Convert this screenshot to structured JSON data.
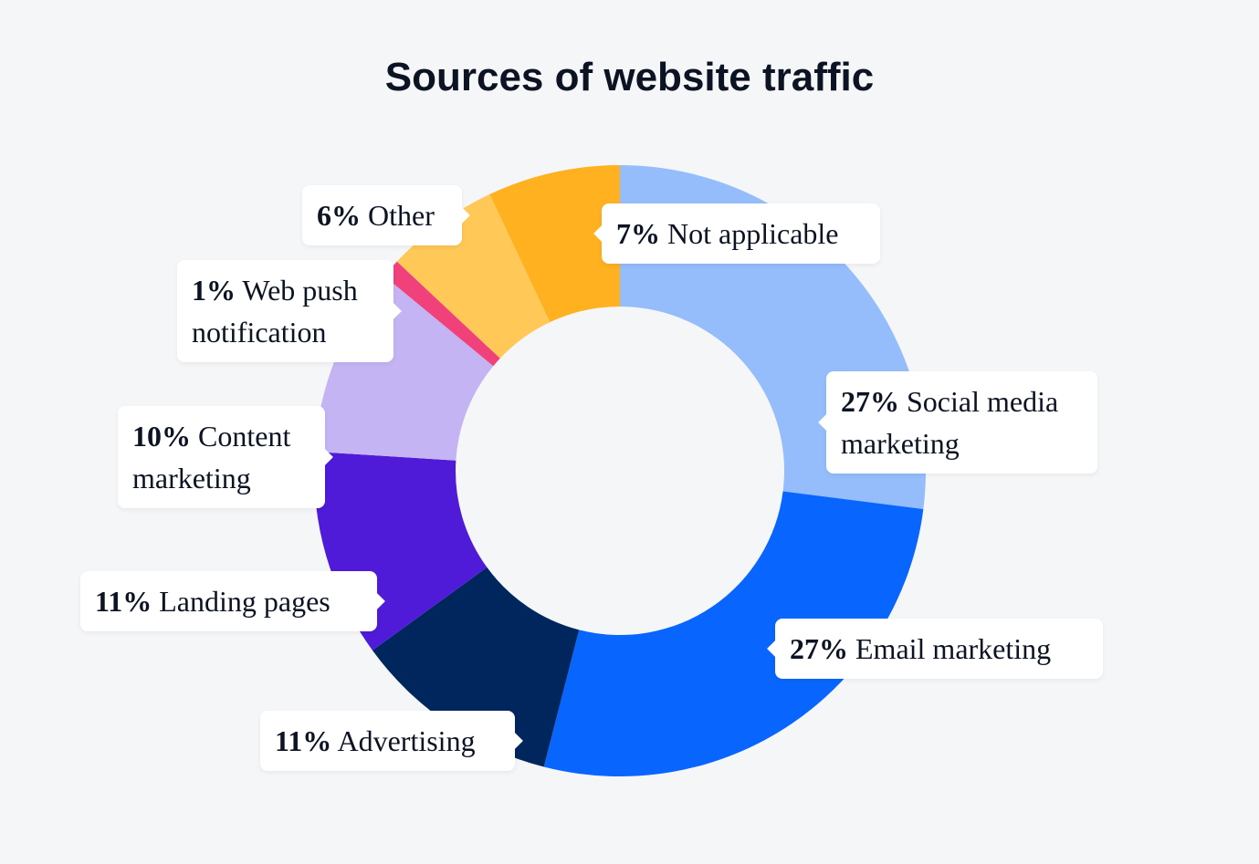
{
  "chart_data": {
    "type": "donut",
    "title": "Sources of website traffic",
    "categories": [
      "Social media marketing",
      "Email marketing",
      "Advertising",
      "Landing pages",
      "Content marketing",
      "Web push notification",
      "Other",
      "Not applicable"
    ],
    "values": [
      27,
      27,
      11,
      11,
      10,
      1,
      6,
      7
    ],
    "value_labels": [
      "27%",
      "27%",
      "11%",
      "11%",
      "10%",
      "1%",
      "6%",
      "7%"
    ],
    "colors": [
      "#95bdfb",
      "#0866ff",
      "#00265e",
      "#4f1bd9",
      "#c4b4f3",
      "#f0417a",
      "#ffc857",
      "#ffb120"
    ]
  }
}
